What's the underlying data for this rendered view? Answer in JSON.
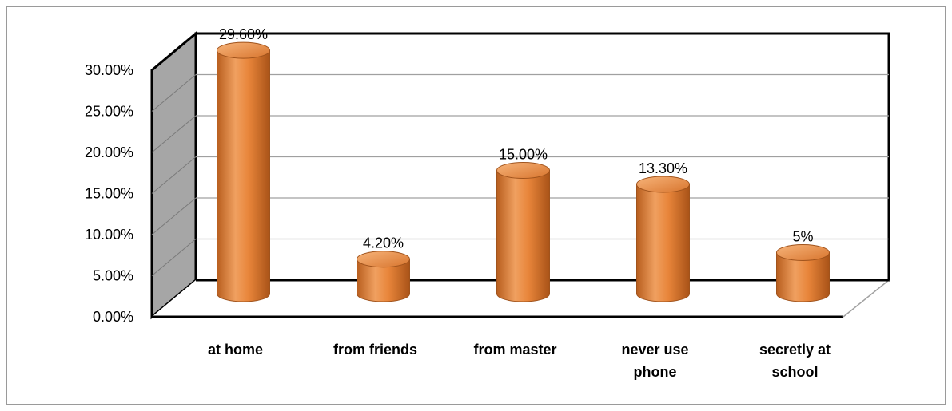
{
  "chart_data": {
    "type": "bar",
    "style": "3d-cylinder",
    "categories": [
      "at home",
      "from friends",
      "from master",
      "never use phone",
      "secretly at school"
    ],
    "category_lines": [
      [
        "at home"
      ],
      [
        "from friends"
      ],
      [
        "from master"
      ],
      [
        "never use",
        "phone"
      ],
      [
        "secretly at",
        "school"
      ]
    ],
    "values": [
      29.6,
      4.2,
      15.0,
      13.3,
      5.0
    ],
    "data_labels": [
      "29.60%",
      "4.20%",
      "15.00%",
      "13.30%",
      "5%"
    ],
    "ylim": [
      0,
      30
    ],
    "yticks": [
      0,
      5,
      10,
      15,
      20,
      25,
      30
    ],
    "ytick_labels": [
      "0.00%",
      "5.00%",
      "10.00%",
      "15.00%",
      "20.00%",
      "25.00%",
      "30.00%"
    ],
    "grid": true,
    "colors": {
      "bar": "#e8853a",
      "bar_dark": "#b85e1e",
      "bar_light": "#f7b47a",
      "side_wall": "#a6a6a6",
      "grid": "#a0a0a0"
    }
  }
}
